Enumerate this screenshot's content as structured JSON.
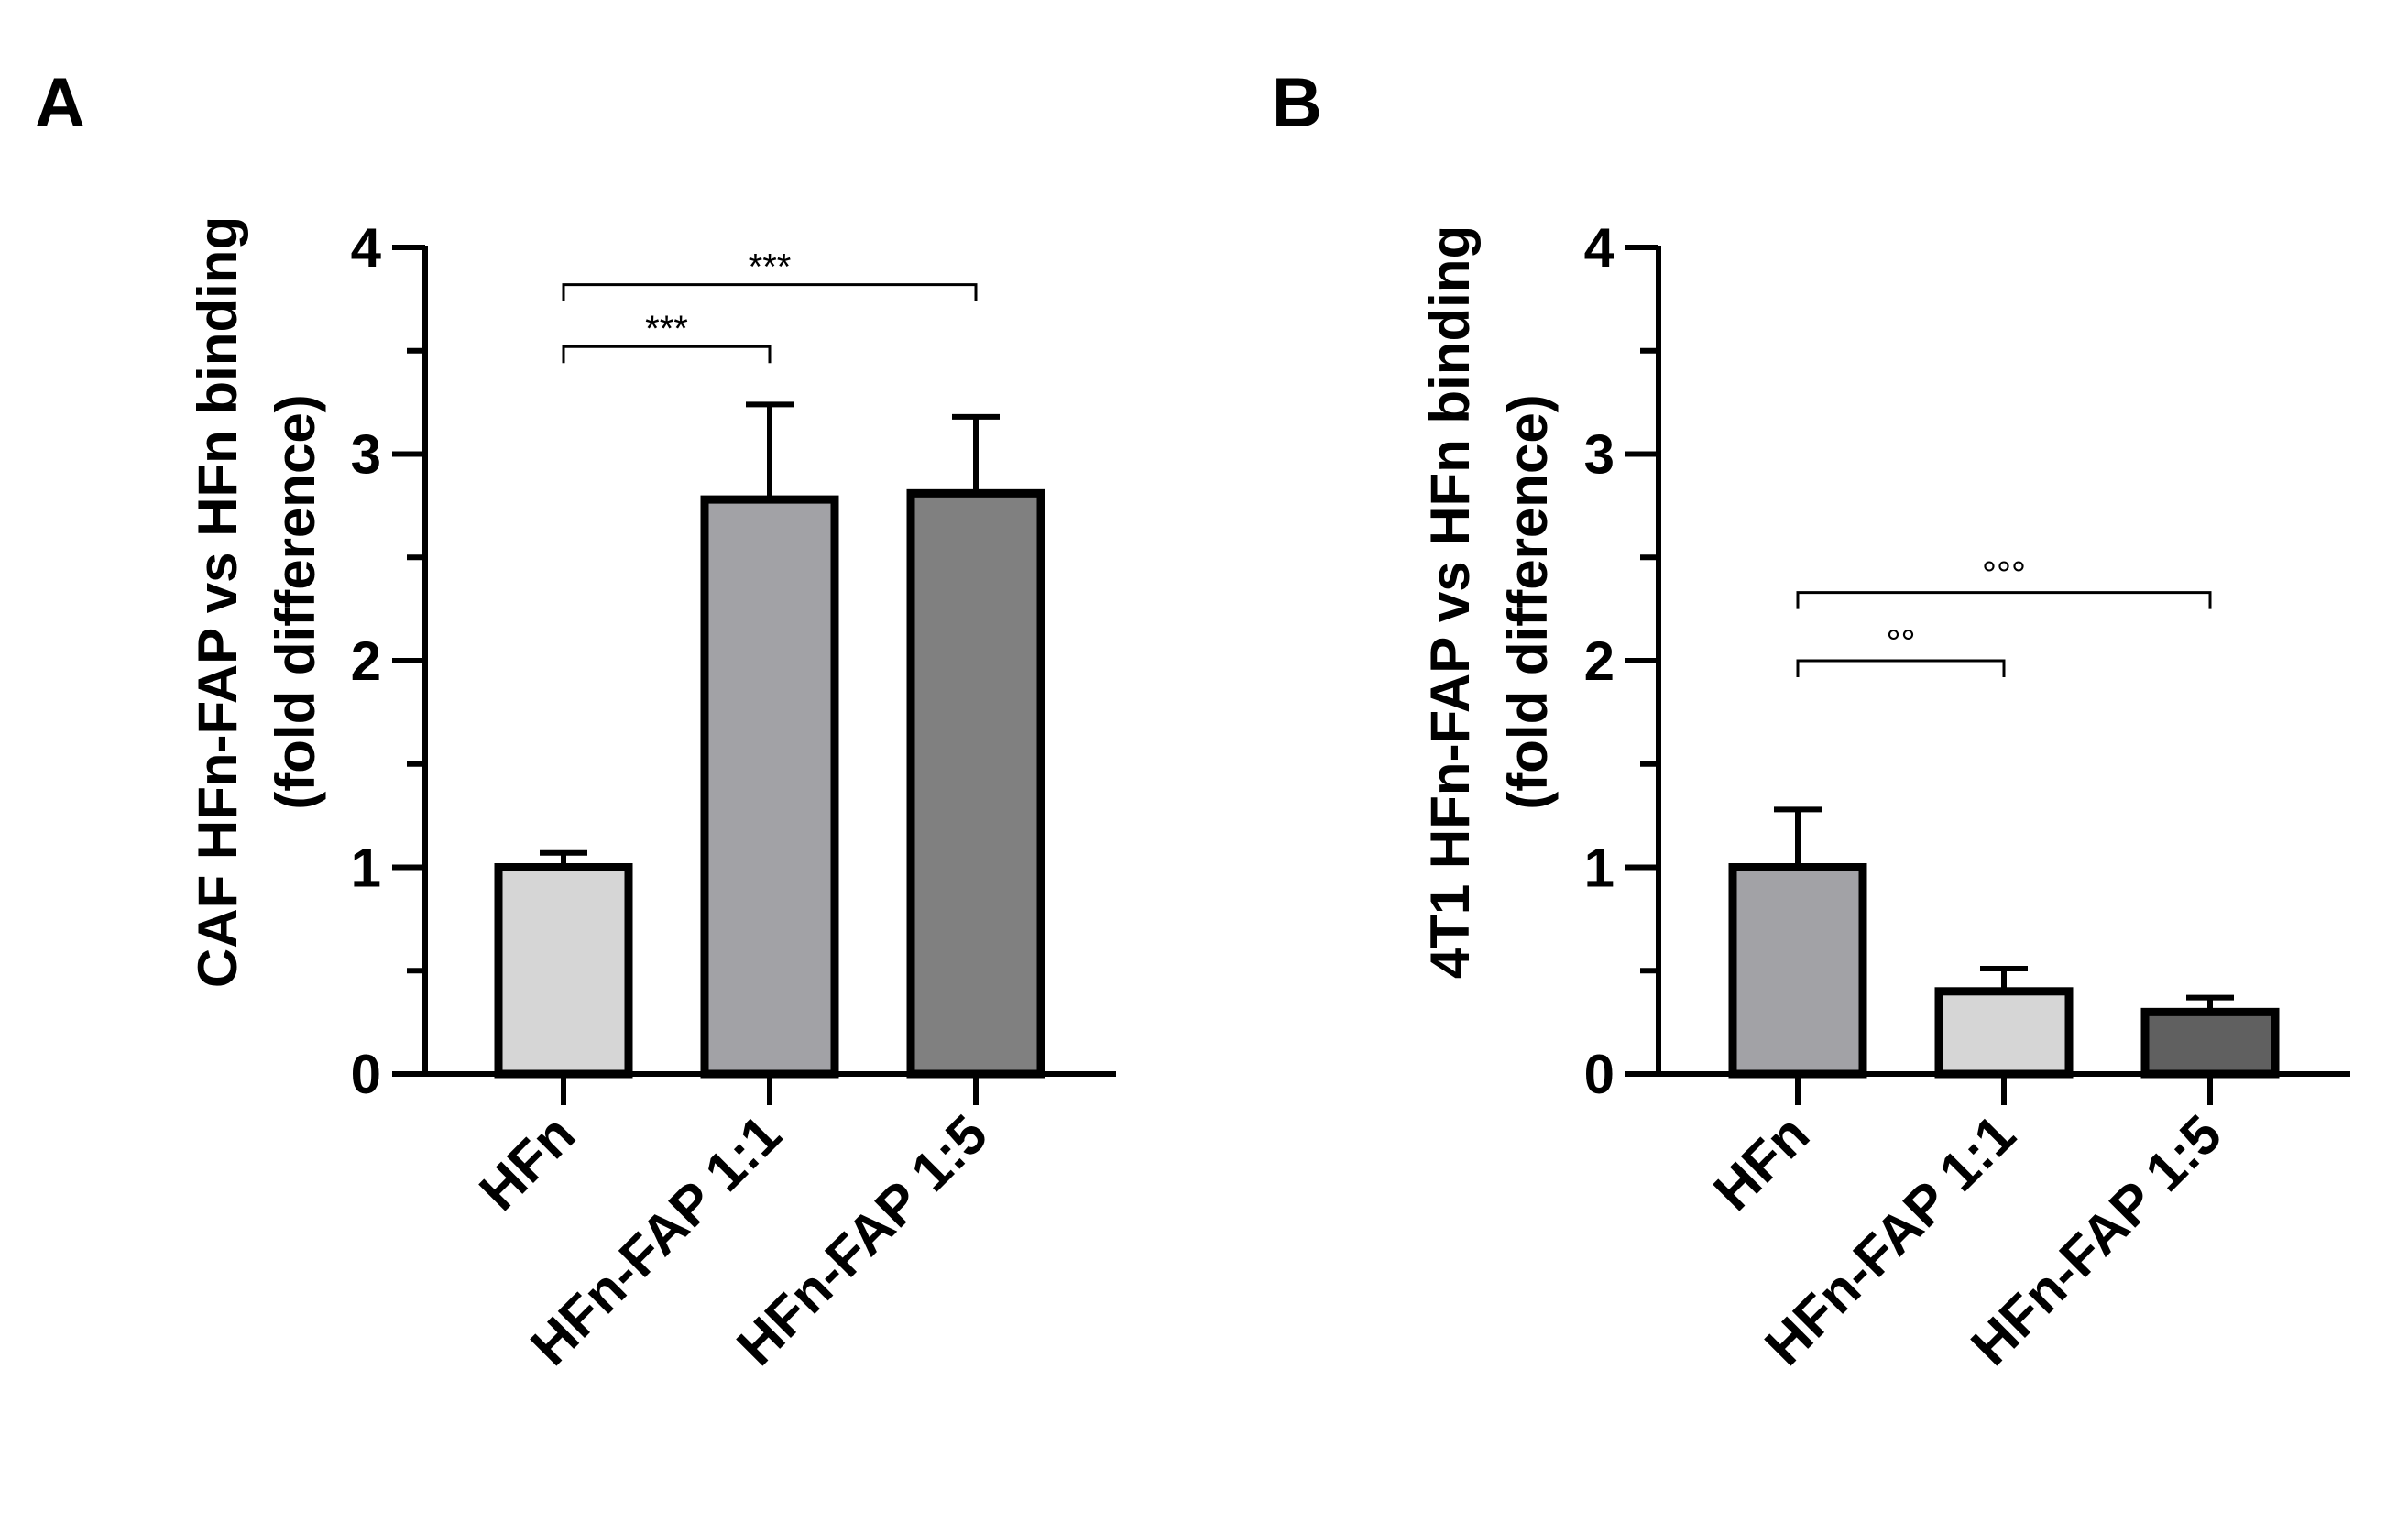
{
  "panels": [
    {
      "letter": "A",
      "ylabel_lines": [
        "CAF HFn-FAP vs HFn binding",
        "(fold difference)"
      ],
      "ytick_labels": [
        "0",
        "1",
        "2",
        "3",
        "4"
      ]
    },
    {
      "letter": "B",
      "ylabel_lines": [
        "4T1 HFn-FAP vs HFn binding",
        "(fold difference)"
      ],
      "ytick_labels": [
        "0",
        "1",
        "2",
        "3",
        "4"
      ]
    }
  ],
  "chart_data": [
    {
      "type": "bar",
      "panel": "A",
      "categories": [
        "HFn",
        "HFn-FAP 1:1",
        "HFn-FAP 1:5"
      ],
      "values": [
        1.0,
        2.78,
        2.81
      ],
      "errors": [
        0.07,
        0.46,
        0.37
      ],
      "bar_colors": [
        "#d6d6d6",
        "#a2a2a6",
        "#808080"
      ],
      "ylabel": "CAF HFn-FAP vs HFn binding (fold difference)",
      "ylim": [
        0,
        4
      ],
      "ymajor": [
        0,
        1,
        2,
        3,
        4
      ],
      "significance": [
        {
          "from": 0,
          "to": 1,
          "label": "***",
          "y": 3.52
        },
        {
          "from": 0,
          "to": 2,
          "label": "***",
          "y": 3.82
        }
      ]
    },
    {
      "type": "bar",
      "panel": "B",
      "categories": [
        "HFn",
        "HFn-FAP 1:1",
        "HFn-FAP 1:5"
      ],
      "values": [
        1.0,
        0.4,
        0.3
      ],
      "errors": [
        0.28,
        0.11,
        0.07
      ],
      "bar_colors": [
        "#a2a2a6",
        "#d6d6d6",
        "#606060"
      ],
      "ylabel": "4T1 HFn-FAP vs HFn binding (fold difference)",
      "ylim": [
        0,
        4
      ],
      "ymajor": [
        0,
        1,
        2,
        3,
        4
      ],
      "significance": [
        {
          "from": 0,
          "to": 1,
          "label": "°°",
          "y": 2.0
        },
        {
          "from": 0,
          "to": 2,
          "label": "°°°",
          "y": 2.33
        }
      ]
    }
  ]
}
